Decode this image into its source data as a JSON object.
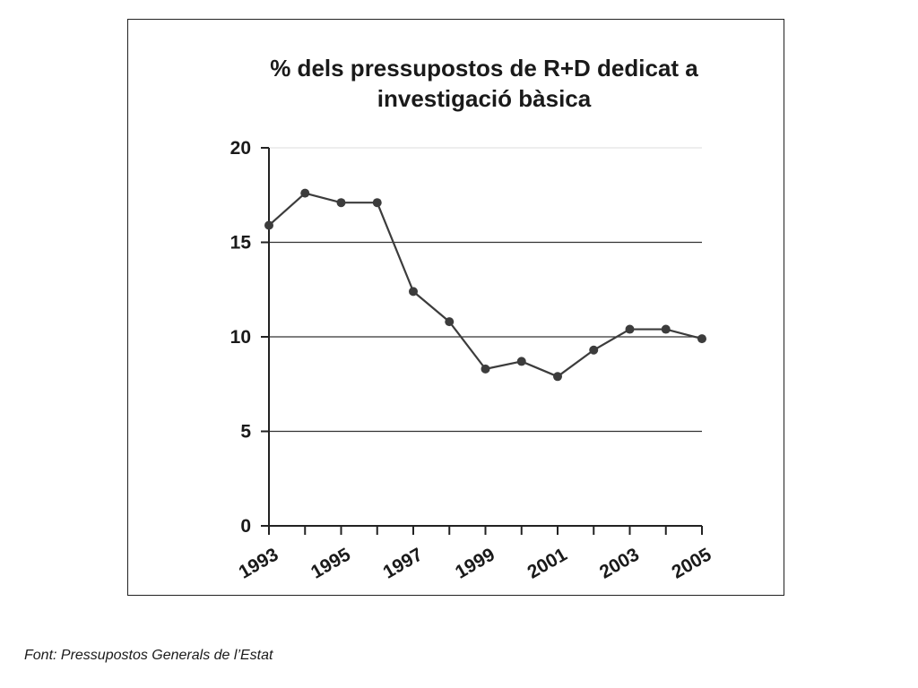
{
  "chart_data": {
    "type": "line",
    "title_lines": [
      "% dels pressupostos de R+D dedicat a",
      "investigació bàsica"
    ],
    "xlabel": "",
    "ylabel": "",
    "x": [
      1993,
      1994,
      1995,
      1996,
      1997,
      1998,
      1999,
      2000,
      2001,
      2002,
      2003,
      2004,
      2005
    ],
    "values": [
      15.9,
      17.6,
      17.1,
      17.1,
      12.4,
      10.8,
      8.3,
      8.7,
      7.9,
      9.3,
      10.4,
      10.4,
      9.9
    ],
    "x_tick_labels": [
      "1993",
      "1995",
      "1997",
      "1999",
      "2001",
      "2003",
      "2005"
    ],
    "y_tick_labels": [
      "0",
      "5",
      "10",
      "15",
      "20"
    ],
    "y_ticks": [
      0,
      5,
      10,
      15,
      20
    ],
    "ylim": [
      0,
      20
    ],
    "xlim": [
      1993,
      2005
    ],
    "grid": "horizontal",
    "legend": "none",
    "colors": {
      "line": "#3c3c3c",
      "marker": "#3c3c3c",
      "grid": "#333333",
      "top_grid": "#dddddd"
    }
  },
  "source_note": "Font: Pressupostos Generals de l’Estat"
}
